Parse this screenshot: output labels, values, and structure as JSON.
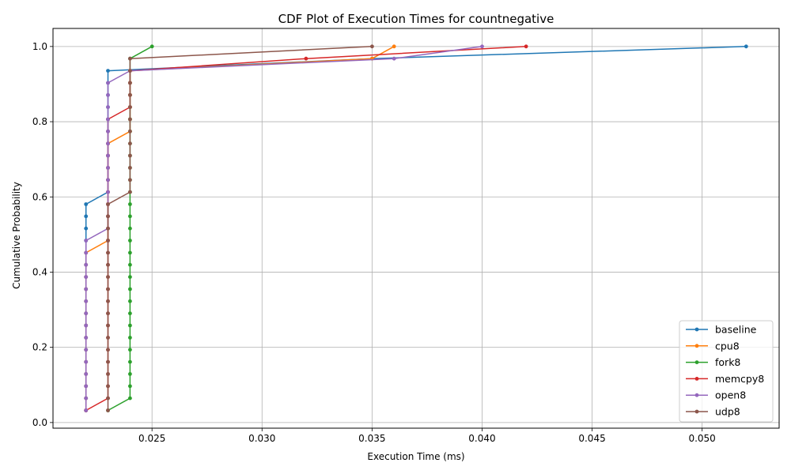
{
  "chart_data": {
    "type": "line",
    "title": "CDF Plot of Execution Times for countnegative",
    "xlabel": "Execution Time (ms)",
    "ylabel": "Cumulative Probability",
    "xlim": [
      0.0205,
      0.0535
    ],
    "ylim": [
      -0.015,
      1.048
    ],
    "xticks": [
      0.025,
      0.03,
      0.035,
      0.04,
      0.045,
      0.05
    ],
    "xtick_labels": [
      "0.025",
      "0.030",
      "0.035",
      "0.040",
      "0.045",
      "0.050"
    ],
    "yticks": [
      0.0,
      0.2,
      0.4,
      0.6,
      0.8,
      1.0
    ],
    "ytick_labels": [
      "0.0",
      "0.2",
      "0.4",
      "0.6",
      "0.8",
      "1.0"
    ],
    "grid": true,
    "legend_position": "bottom-right",
    "n_points": 31,
    "series": [
      {
        "name": "baseline",
        "color": "#1f77b4",
        "x": [
          0.022,
          0.022,
          0.022,
          0.022,
          0.022,
          0.022,
          0.022,
          0.022,
          0.022,
          0.022,
          0.022,
          0.022,
          0.022,
          0.022,
          0.022,
          0.022,
          0.022,
          0.022,
          0.023,
          0.023,
          0.023,
          0.023,
          0.023,
          0.023,
          0.023,
          0.023,
          0.023,
          0.023,
          0.023,
          0.035,
          0.052
        ]
      },
      {
        "name": "cpu8",
        "color": "#ff7f0e",
        "x": [
          0.022,
          0.022,
          0.022,
          0.022,
          0.022,
          0.022,
          0.022,
          0.022,
          0.022,
          0.022,
          0.022,
          0.022,
          0.022,
          0.022,
          0.023,
          0.023,
          0.023,
          0.023,
          0.023,
          0.023,
          0.023,
          0.023,
          0.023,
          0.024,
          0.024,
          0.024,
          0.024,
          0.024,
          0.024,
          0.035,
          0.036
        ]
      },
      {
        "name": "fork8",
        "color": "#2ca02c",
        "x": [
          0.023,
          0.024,
          0.024,
          0.024,
          0.024,
          0.024,
          0.024,
          0.024,
          0.024,
          0.024,
          0.024,
          0.024,
          0.024,
          0.024,
          0.024,
          0.024,
          0.024,
          0.024,
          0.024,
          0.024,
          0.024,
          0.024,
          0.024,
          0.024,
          0.024,
          0.024,
          0.024,
          0.024,
          0.024,
          0.024,
          0.025
        ]
      },
      {
        "name": "memcpy8",
        "color": "#d62728",
        "x": [
          0.022,
          0.023,
          0.023,
          0.023,
          0.023,
          0.023,
          0.023,
          0.023,
          0.023,
          0.023,
          0.023,
          0.023,
          0.023,
          0.023,
          0.023,
          0.023,
          0.023,
          0.023,
          0.023,
          0.023,
          0.023,
          0.023,
          0.023,
          0.023,
          0.023,
          0.024,
          0.024,
          0.024,
          0.024,
          0.032,
          0.042
        ]
      },
      {
        "name": "open8",
        "color": "#9467bd",
        "x": [
          0.022,
          0.022,
          0.022,
          0.022,
          0.022,
          0.022,
          0.022,
          0.022,
          0.022,
          0.022,
          0.022,
          0.022,
          0.022,
          0.022,
          0.022,
          0.023,
          0.023,
          0.023,
          0.023,
          0.023,
          0.023,
          0.023,
          0.023,
          0.023,
          0.023,
          0.023,
          0.023,
          0.023,
          0.024,
          0.036,
          0.04
        ]
      },
      {
        "name": "udp8",
        "color": "#8c564b",
        "x": [
          0.023,
          0.023,
          0.023,
          0.023,
          0.023,
          0.023,
          0.023,
          0.023,
          0.023,
          0.023,
          0.023,
          0.023,
          0.023,
          0.023,
          0.023,
          0.023,
          0.023,
          0.023,
          0.024,
          0.024,
          0.024,
          0.024,
          0.024,
          0.024,
          0.024,
          0.024,
          0.024,
          0.024,
          0.024,
          0.024,
          0.035
        ]
      }
    ]
  }
}
